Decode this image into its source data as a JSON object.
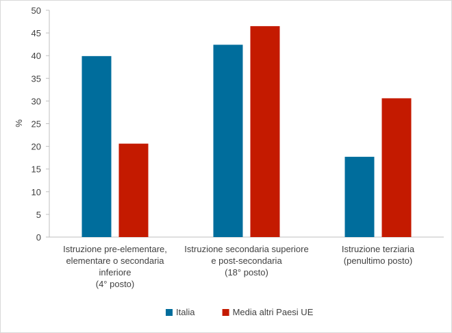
{
  "chart_data": {
    "type": "bar",
    "categories": [
      [
        "Istruzione pre-elementare,",
        "elementare o secondaria",
        "inferiore",
        "(4° posto)"
      ],
      [
        "Istruzione secondaria superiore",
        "e post-secondaria",
        "(18° posto)"
      ],
      [
        "Istruzione terziaria",
        "(penultimo posto)"
      ]
    ],
    "series": [
      {
        "name": "Italia",
        "color": "#006d9c",
        "values": [
          39.9,
          42.4,
          17.7
        ]
      },
      {
        "name": "Media altri Paesi UE",
        "color": "#c41a00",
        "values": [
          20.6,
          46.5,
          30.6
        ]
      }
    ],
    "ylabel": "%",
    "ylim": [
      0,
      50
    ],
    "yticks": [
      0,
      5,
      10,
      15,
      20,
      25,
      30,
      35,
      40,
      45,
      50
    ],
    "grid": false,
    "legend_position": "bottom"
  }
}
